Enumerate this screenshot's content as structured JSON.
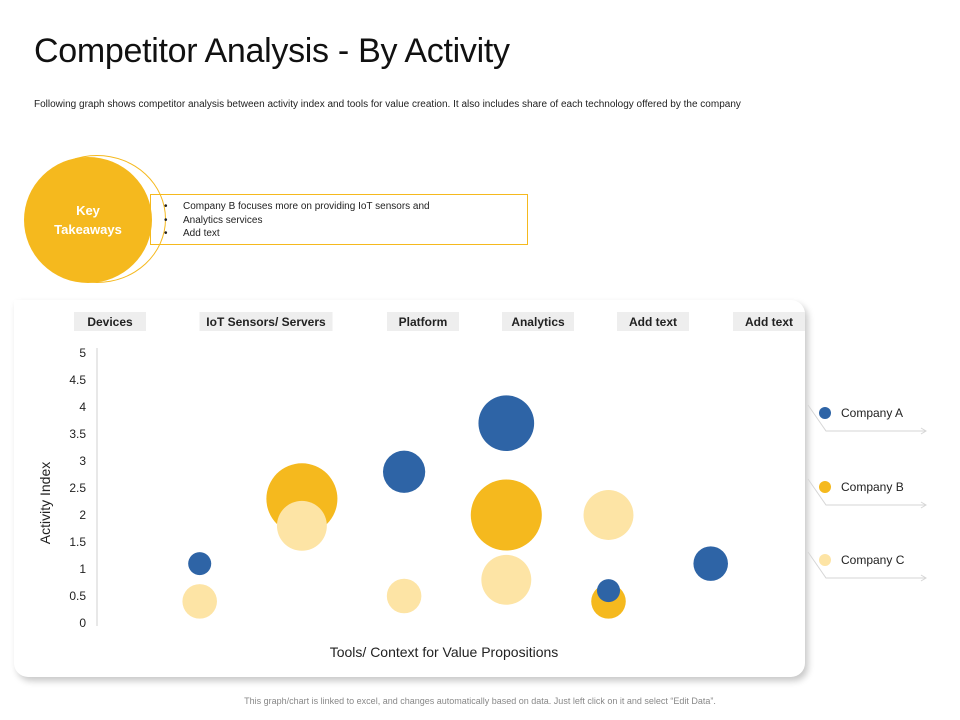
{
  "title": "Competitor Analysis - By Activity",
  "subtitle": "Following graph shows competitor analysis between activity  index and tools for value creation. It also includes share of each technology offered by the company",
  "key_takeaways": {
    "heading_line1": "Key",
    "heading_line2": "Takeaways",
    "bullets": [
      "Company B focuses more on providing IoT sensors and",
      "Analytics  services",
      "Add text"
    ]
  },
  "footnote": "This graph/chart is linked to excel, and changes automatically based on data. Just left click on it and select “Edit Data”.",
  "colors": {
    "company_a": "#2e64a6",
    "company_b": "#f5b91e",
    "company_c": "#fde4a5",
    "accent": "#f5b91e"
  },
  "chart_data": {
    "type": "scatter",
    "subtype": "bubble",
    "categories": [
      "Devices",
      "IoT Sensors/ Servers",
      "Platform",
      "Analytics",
      "Add text",
      "Add text"
    ],
    "xlabel": "Tools/ Context for Value Propositions",
    "ylabel": "Activity Index",
    "ylim": [
      0,
      5
    ],
    "yticks": [
      "0",
      "0.5",
      "1",
      "1.5",
      "2",
      "2.5",
      "3",
      "3.5",
      "4",
      "4.5",
      "5"
    ],
    "xlim": [
      0,
      6
    ],
    "grid": false,
    "legend_position": "right",
    "series": [
      {
        "name": "Company A",
        "color": "#2e64a6",
        "points": [
          {
            "x": 1.0,
            "y": 1.1,
            "size": 1.2
          },
          {
            "x": 3.0,
            "y": 2.8,
            "size": 2.2
          },
          {
            "x": 4.0,
            "y": 3.7,
            "size": 2.9
          },
          {
            "x": 5.0,
            "y": 0.6,
            "size": 1.2
          },
          {
            "x": 6.0,
            "y": 1.1,
            "size": 1.8
          }
        ]
      },
      {
        "name": "Company B",
        "color": "#f5b91e",
        "points": [
          {
            "x": 2.0,
            "y": 2.3,
            "size": 3.7
          },
          {
            "x": 4.0,
            "y": 2.0,
            "size": 3.7
          },
          {
            "x": 5.0,
            "y": 0.4,
            "size": 1.8
          }
        ]
      },
      {
        "name": "Company C",
        "color": "#fde4a5",
        "points": [
          {
            "x": 1.0,
            "y": 0.4,
            "size": 1.8
          },
          {
            "x": 2.0,
            "y": 1.8,
            "size": 2.6
          },
          {
            "x": 3.0,
            "y": 0.5,
            "size": 1.8
          },
          {
            "x": 4.0,
            "y": 0.8,
            "size": 2.6
          },
          {
            "x": 5.0,
            "y": 2.0,
            "size": 2.6
          }
        ]
      }
    ]
  }
}
